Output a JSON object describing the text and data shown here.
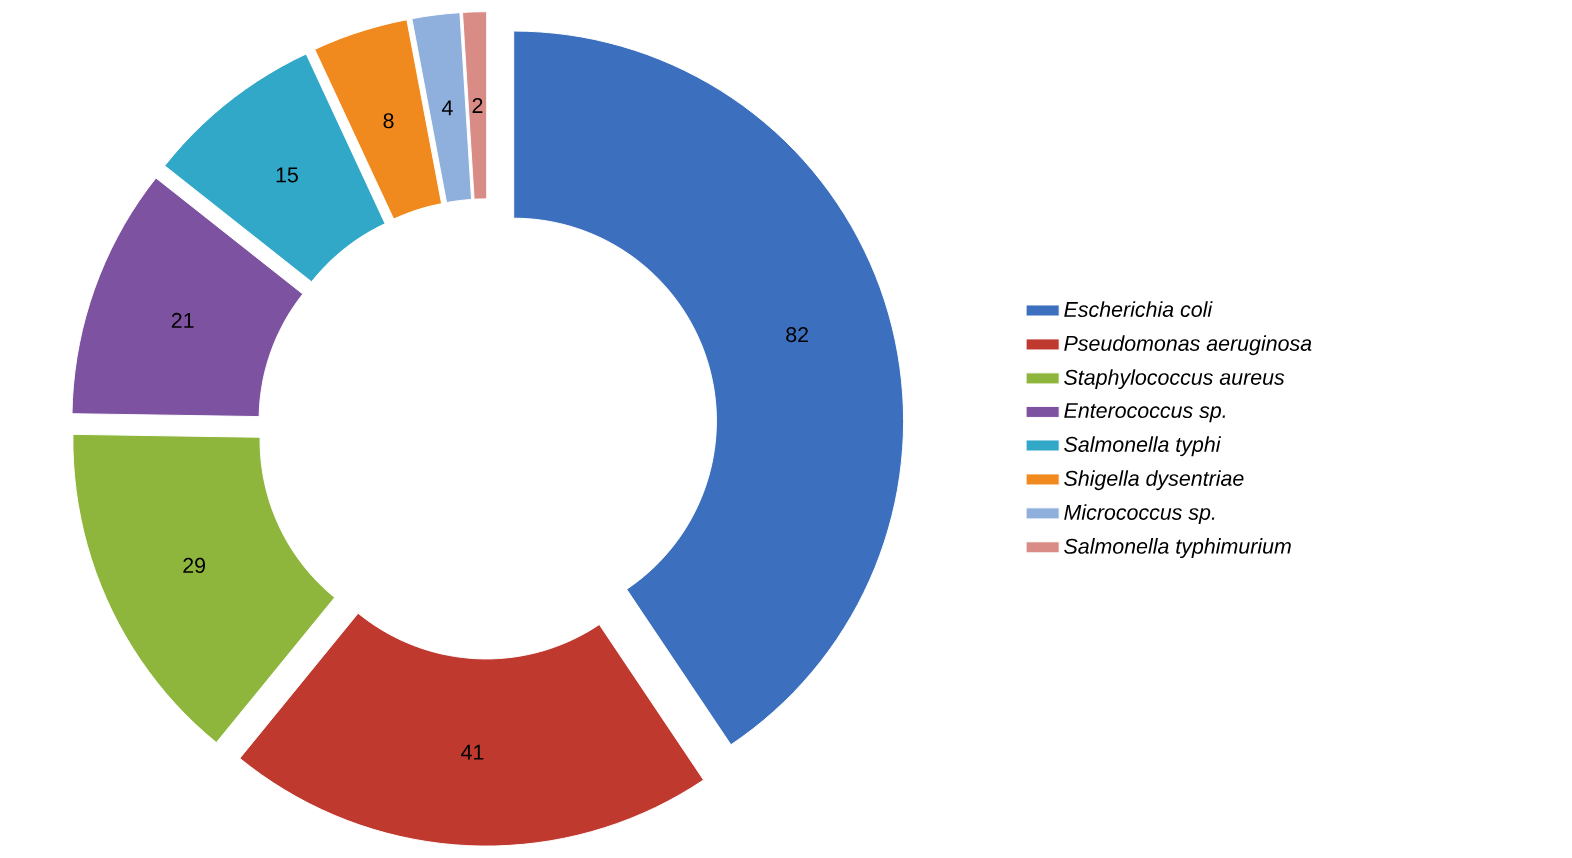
{
  "chart_data": {
    "type": "donut",
    "categories": [
      "Escherichia coli",
      "Pseudomonas aeruginosa",
      "Staphylococcus aureus",
      "Enterococcus sp.",
      "Salmonella typhi",
      "Shigella dysentriae",
      "Micrococcus sp.",
      "Salmonella typhimurium"
    ],
    "values": [
      82,
      41,
      29,
      21,
      15,
      8,
      4,
      2
    ],
    "colors": [
      "#3c6fbe",
      "#c0392f",
      "#8fb63c",
      "#7d52a0",
      "#32a8c8",
      "#f08a1e",
      "#8fb0dc",
      "#d98c86"
    ],
    "data_labels": true,
    "legend": "right"
  }
}
